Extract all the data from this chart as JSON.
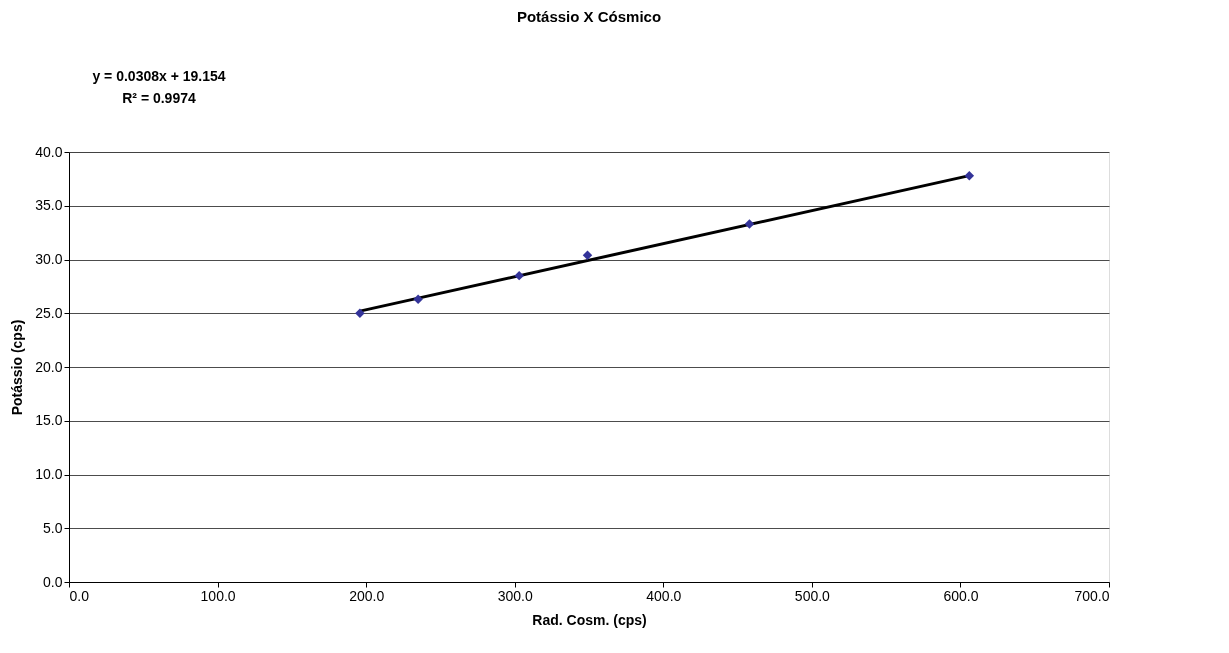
{
  "chart_data": {
    "type": "scatter",
    "title": "Potássio X Cósmico",
    "xlabel": "Rad. Cosm. (cps)",
    "ylabel": "Potássio (cps)",
    "x": [
      195.8,
      235,
      303,
      349,
      458,
      606
    ],
    "series": [
      {
        "color": "#333399",
        "marker": "diamond",
        "values": [
          25.0,
          26.3,
          28.5,
          30.4,
          33.3,
          37.8
        ]
      },
      {
        "type": "line",
        "color": "#000000",
        "x": [
          195.8,
          606
        ],
        "values": [
          25.2,
          37.8
        ],
        "line_style": "solid"
      }
    ],
    "xlim": [
      0,
      700
    ],
    "xticks": [
      {
        "value": 0,
        "label": "0.0"
      },
      {
        "value": 100,
        "label": "100.0"
      },
      {
        "value": 200,
        "label": "200.0"
      },
      {
        "value": 300,
        "label": "300.0"
      },
      {
        "value": 400,
        "label": "400.0"
      },
      {
        "value": 500,
        "label": "500.0"
      },
      {
        "value": 600,
        "label": "600.0"
      },
      {
        "value": 700,
        "label": "700.0"
      }
    ],
    "ylim": [
      0,
      40
    ],
    "yticks": [
      {
        "value": 0,
        "label": "0.0"
      },
      {
        "value": 5,
        "label": "5.0"
      },
      {
        "value": 10,
        "label": "10.0"
      },
      {
        "value": 15,
        "label": "15.0"
      },
      {
        "value": 20,
        "label": "20.0"
      },
      {
        "value": 25,
        "label": "25.0"
      },
      {
        "value": 30,
        "label": "30.0"
      },
      {
        "value": 35,
        "label": "35.0"
      },
      {
        "value": 40,
        "label": "40.0"
      }
    ],
    "grid": "y",
    "legend": false,
    "annotations": [
      "y = 0.0308x + 19.154",
      "R² = 0.9974"
    ]
  }
}
